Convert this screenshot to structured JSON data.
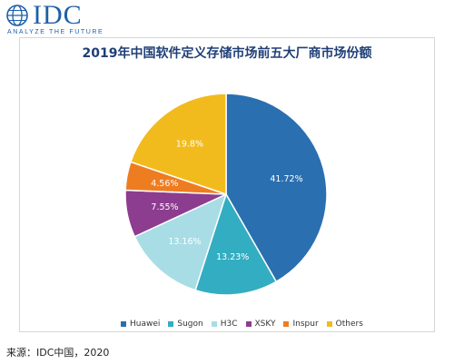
{
  "logo": {
    "text": "IDC",
    "tagline": "ANALYZE THE FUTURE",
    "color": "#1f5fa8"
  },
  "source_note": "来源：IDC中国，2020",
  "chart_data": {
    "type": "pie",
    "title": "2019年中国软件定义存储市场前五大厂商市场份额",
    "legend_position": "bottom",
    "slices": [
      {
        "label": "Huawei",
        "value": 41.72,
        "value_label": "41.72%",
        "color": "#2a6fb0"
      },
      {
        "label": "Sugon",
        "value": 13.23,
        "value_label": "13.23%",
        "color": "#33adc1"
      },
      {
        "label": "H3C",
        "value": 13.16,
        "value_label": "13.16%",
        "color": "#a8dde6"
      },
      {
        "label": "XSKY",
        "value": 7.55,
        "value_label": "7.55%",
        "color": "#8c3d8f"
      },
      {
        "label": "Inspur",
        "value": 4.56,
        "value_label": "4.56%",
        "color": "#ee7d22"
      },
      {
        "label": "Others",
        "value": 19.8,
        "value_label": "19.8%",
        "color": "#f2bb1d"
      }
    ]
  }
}
